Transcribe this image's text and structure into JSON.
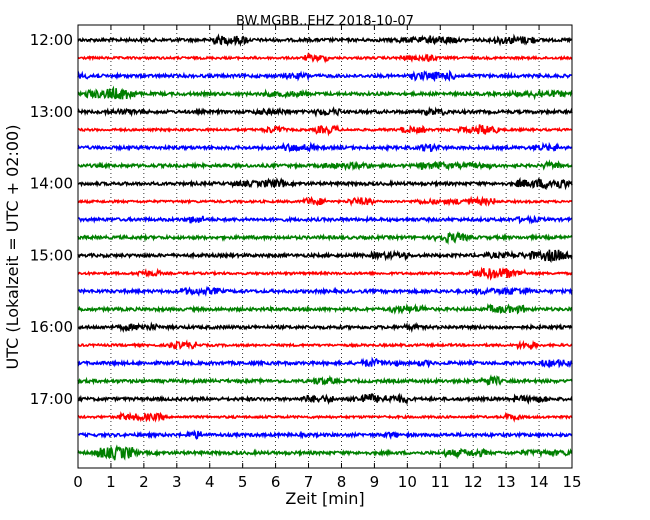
{
  "chart_data": {
    "type": "line",
    "title": "BW.MGBB..EHZ 2018-10-07",
    "xlabel": "Zeit  [min]",
    "ylabel": "UTC (Lokalzeit = UTC + 02:00)",
    "xlim": [
      0,
      15
    ],
    "x_ticks": [
      "0",
      "1",
      "2",
      "3",
      "4",
      "5",
      "6",
      "7",
      "8",
      "9",
      "10",
      "11",
      "12",
      "13",
      "14",
      "15"
    ],
    "y_tick_labels": [
      "12:00",
      "13:00",
      "14:00",
      "15:00",
      "16:00",
      "17:00"
    ],
    "grid": "vertical dotted",
    "trace_interval_minutes": 15,
    "trace_colors": [
      "#000000",
      "#ff0000",
      "#0000ff",
      "#008000"
    ],
    "traces": [
      {
        "start": "12:00",
        "color": "#000000"
      },
      {
        "start": "12:15",
        "color": "#ff0000"
      },
      {
        "start": "12:30",
        "color": "#0000ff"
      },
      {
        "start": "12:45",
        "color": "#008000"
      },
      {
        "start": "13:00",
        "color": "#000000"
      },
      {
        "start": "13:15",
        "color": "#ff0000"
      },
      {
        "start": "13:30",
        "color": "#0000ff"
      },
      {
        "start": "13:45",
        "color": "#008000"
      },
      {
        "start": "14:00",
        "color": "#000000"
      },
      {
        "start": "14:15",
        "color": "#ff0000"
      },
      {
        "start": "14:30",
        "color": "#0000ff"
      },
      {
        "start": "14:45",
        "color": "#008000"
      },
      {
        "start": "15:00",
        "color": "#000000"
      },
      {
        "start": "15:15",
        "color": "#ff0000"
      },
      {
        "start": "15:30",
        "color": "#0000ff"
      },
      {
        "start": "15:45",
        "color": "#008000"
      },
      {
        "start": "16:00",
        "color": "#000000"
      },
      {
        "start": "16:15",
        "color": "#ff0000"
      },
      {
        "start": "16:30",
        "color": "#0000ff"
      },
      {
        "start": "16:45",
        "color": "#008000"
      },
      {
        "start": "17:00",
        "color": "#000000"
      },
      {
        "start": "17:15",
        "color": "#ff0000"
      },
      {
        "start": "17:30",
        "color": "#0000ff"
      },
      {
        "start": "17:45",
        "color": "#008000"
      }
    ]
  }
}
